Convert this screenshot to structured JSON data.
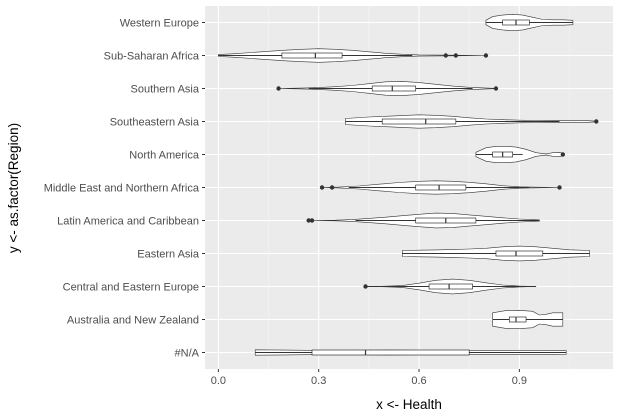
{
  "chart_data": {
    "type": "violin",
    "xlabel": "x <- Health",
    "ylabel": "y <- as.factor(Region)",
    "xlim": [
      -0.04,
      1.18
    ],
    "x_ticks": [
      0.0,
      0.3,
      0.6,
      0.9
    ],
    "x_tick_labels": [
      "0.0",
      "0.3",
      "0.6",
      "0.9"
    ],
    "categories": [
      "#N/A",
      "Australia and New Zealand",
      "Central and Eastern Europe",
      "Eastern Asia",
      "Latin America and Caribbean",
      "Middle East and Northern Africa",
      "North America",
      "Southeastern Asia",
      "Southern Asia",
      "Sub-Saharan Africa",
      "Western Europe"
    ],
    "series": [
      {
        "category": "#N/A",
        "density_range": [
          0.11,
          1.04
        ],
        "density_profile": [
          [
            0.11,
            0.18
          ],
          [
            0.2,
            0.16
          ],
          [
            0.3,
            0.14
          ],
          [
            0.4,
            0.15
          ],
          [
            0.5,
            0.16
          ],
          [
            0.6,
            0.15
          ],
          [
            0.7,
            0.14
          ],
          [
            0.8,
            0.14
          ],
          [
            0.9,
            0.14
          ],
          [
            0.97,
            0.14
          ],
          [
            1.04,
            0.12
          ]
        ],
        "q1": 0.28,
        "median": 0.44,
        "q3": 0.75,
        "whisker_low": 0.11,
        "whisker_high": 1.04,
        "outliers": []
      },
      {
        "category": "Australia and New Zealand",
        "density_range": [
          0.82,
          1.03
        ],
        "density_profile": [
          [
            0.82,
            0.45
          ],
          [
            0.86,
            0.6
          ],
          [
            0.9,
            0.62
          ],
          [
            0.94,
            0.55
          ],
          [
            0.96,
            0.3
          ],
          [
            0.98,
            0.35
          ],
          [
            1.0,
            0.45
          ],
          [
            1.03,
            0.45
          ]
        ],
        "q1": 0.87,
        "median": 0.89,
        "q3": 0.92,
        "whisker_low": 0.82,
        "whisker_high": 1.03,
        "outliers": []
      },
      {
        "category": "Central and Eastern Europe",
        "density_range": [
          0.44,
          0.95
        ],
        "density_profile": [
          [
            0.44,
            0.0
          ],
          [
            0.5,
            0.02
          ],
          [
            0.55,
            0.06
          ],
          [
            0.6,
            0.22
          ],
          [
            0.65,
            0.42
          ],
          [
            0.7,
            0.5
          ],
          [
            0.75,
            0.42
          ],
          [
            0.8,
            0.25
          ],
          [
            0.85,
            0.1
          ],
          [
            0.9,
            0.03
          ],
          [
            0.95,
            0.0
          ]
        ],
        "q1": 0.63,
        "median": 0.69,
        "q3": 0.76,
        "whisker_low": 0.44,
        "whisker_high": 0.95,
        "outliers": [
          0.44
        ]
      },
      {
        "category": "Eastern Asia",
        "density_range": [
          0.55,
          1.11
        ],
        "density_profile": [
          [
            0.55,
            0.2
          ],
          [
            0.6,
            0.22
          ],
          [
            0.65,
            0.24
          ],
          [
            0.7,
            0.26
          ],
          [
            0.75,
            0.3
          ],
          [
            0.8,
            0.35
          ],
          [
            0.85,
            0.45
          ],
          [
            0.9,
            0.5
          ],
          [
            0.95,
            0.45
          ],
          [
            1.0,
            0.35
          ],
          [
            1.05,
            0.25
          ],
          [
            1.11,
            0.2
          ]
        ],
        "q1": 0.83,
        "median": 0.89,
        "q3": 0.97,
        "whisker_low": 0.55,
        "whisker_high": 1.11,
        "outliers": []
      },
      {
        "category": "Latin America and Caribbean",
        "density_range": [
          0.28,
          0.96
        ],
        "density_profile": [
          [
            0.28,
            0.0
          ],
          [
            0.35,
            0.02
          ],
          [
            0.4,
            0.06
          ],
          [
            0.45,
            0.14
          ],
          [
            0.5,
            0.22
          ],
          [
            0.55,
            0.32
          ],
          [
            0.6,
            0.42
          ],
          [
            0.65,
            0.5
          ],
          [
            0.7,
            0.48
          ],
          [
            0.75,
            0.38
          ],
          [
            0.8,
            0.28
          ],
          [
            0.85,
            0.18
          ],
          [
            0.9,
            0.1
          ],
          [
            0.96,
            0.04
          ]
        ],
        "q1": 0.59,
        "median": 0.68,
        "q3": 0.77,
        "whisker_low": 0.41,
        "whisker_high": 0.96,
        "outliers": [
          0.27,
          0.28
        ]
      },
      {
        "category": "Middle East and Northern Africa",
        "density_range": [
          0.31,
          1.02
        ],
        "density_profile": [
          [
            0.31,
            0.0
          ],
          [
            0.36,
            0.03
          ],
          [
            0.42,
            0.1
          ],
          [
            0.48,
            0.22
          ],
          [
            0.54,
            0.34
          ],
          [
            0.6,
            0.42
          ],
          [
            0.65,
            0.45
          ],
          [
            0.7,
            0.42
          ],
          [
            0.75,
            0.35
          ],
          [
            0.8,
            0.25
          ],
          [
            0.85,
            0.12
          ],
          [
            0.9,
            0.05
          ],
          [
            0.95,
            0.02
          ],
          [
            1.02,
            0.0
          ]
        ],
        "q1": 0.59,
        "median": 0.66,
        "q3": 0.74,
        "whisker_low": 0.39,
        "whisker_high": 0.93,
        "outliers": [
          0.31,
          0.34,
          1.02
        ]
      },
      {
        "category": "North America",
        "density_range": [
          0.77,
          1.03
        ],
        "density_profile": [
          [
            0.77,
            0.15
          ],
          [
            0.8,
            0.45
          ],
          [
            0.83,
            0.55
          ],
          [
            0.86,
            0.55
          ],
          [
            0.89,
            0.5
          ],
          [
            0.92,
            0.35
          ],
          [
            0.95,
            0.12
          ],
          [
            0.98,
            0.04
          ],
          [
            1.0,
            0.12
          ],
          [
            1.02,
            0.14
          ],
          [
            1.03,
            0.1
          ]
        ],
        "q1": 0.82,
        "median": 0.85,
        "q3": 0.88,
        "whisker_low": 0.77,
        "whisker_high": 0.91,
        "outliers": [
          1.03
        ]
      },
      {
        "category": "Southeastern Asia",
        "density_range": [
          0.38,
          1.13
        ],
        "density_profile": [
          [
            0.38,
            0.2
          ],
          [
            0.45,
            0.3
          ],
          [
            0.5,
            0.35
          ],
          [
            0.55,
            0.4
          ],
          [
            0.6,
            0.45
          ],
          [
            0.65,
            0.42
          ],
          [
            0.7,
            0.35
          ],
          [
            0.75,
            0.25
          ],
          [
            0.8,
            0.17
          ],
          [
            0.85,
            0.12
          ],
          [
            0.9,
            0.09
          ],
          [
            0.95,
            0.07
          ],
          [
            1.0,
            0.06
          ],
          [
            1.05,
            0.06
          ],
          [
            1.1,
            0.06
          ],
          [
            1.13,
            0.02
          ]
        ],
        "q1": 0.49,
        "median": 0.62,
        "q3": 0.71,
        "whisker_low": 0.38,
        "whisker_high": 1.02,
        "outliers": [
          1.13
        ]
      },
      {
        "category": "Southern Asia",
        "density_range": [
          0.18,
          0.83
        ],
        "density_profile": [
          [
            0.18,
            0.0
          ],
          [
            0.25,
            0.03
          ],
          [
            0.3,
            0.06
          ],
          [
            0.35,
            0.12
          ],
          [
            0.4,
            0.2
          ],
          [
            0.45,
            0.32
          ],
          [
            0.5,
            0.45
          ],
          [
            0.55,
            0.48
          ],
          [
            0.6,
            0.4
          ],
          [
            0.65,
            0.28
          ],
          [
            0.7,
            0.16
          ],
          [
            0.75,
            0.08
          ],
          [
            0.83,
            0.01
          ]
        ],
        "q1": 0.46,
        "median": 0.52,
        "q3": 0.59,
        "whisker_low": 0.27,
        "whisker_high": 0.76,
        "outliers": [
          0.18,
          0.83
        ]
      },
      {
        "category": "Sub-Saharan Africa",
        "density_range": [
          0.0,
          0.8
        ],
        "density_profile": [
          [
            0.0,
            0.06
          ],
          [
            0.05,
            0.12
          ],
          [
            0.1,
            0.2
          ],
          [
            0.15,
            0.28
          ],
          [
            0.2,
            0.36
          ],
          [
            0.25,
            0.42
          ],
          [
            0.3,
            0.46
          ],
          [
            0.35,
            0.42
          ],
          [
            0.4,
            0.35
          ],
          [
            0.45,
            0.25
          ],
          [
            0.5,
            0.15
          ],
          [
            0.55,
            0.08
          ],
          [
            0.6,
            0.04
          ],
          [
            0.7,
            0.02
          ],
          [
            0.8,
            0.0
          ]
        ],
        "q1": 0.19,
        "median": 0.29,
        "q3": 0.37,
        "whisker_low": 0.0,
        "whisker_high": 0.58,
        "outliers": [
          0.68,
          0.71,
          0.8
        ]
      },
      {
        "category": "Western Europe",
        "density_range": [
          0.8,
          1.06
        ],
        "density_profile": [
          [
            0.8,
            0.15
          ],
          [
            0.82,
            0.4
          ],
          [
            0.85,
            0.5
          ],
          [
            0.88,
            0.55
          ],
          [
            0.91,
            0.5
          ],
          [
            0.94,
            0.35
          ],
          [
            0.97,
            0.2
          ],
          [
            1.0,
            0.18
          ],
          [
            1.03,
            0.18
          ],
          [
            1.06,
            0.15
          ]
        ],
        "q1": 0.85,
        "median": 0.89,
        "q3": 0.93,
        "whisker_low": 0.8,
        "whisker_high": 1.06,
        "outliers": []
      }
    ]
  }
}
